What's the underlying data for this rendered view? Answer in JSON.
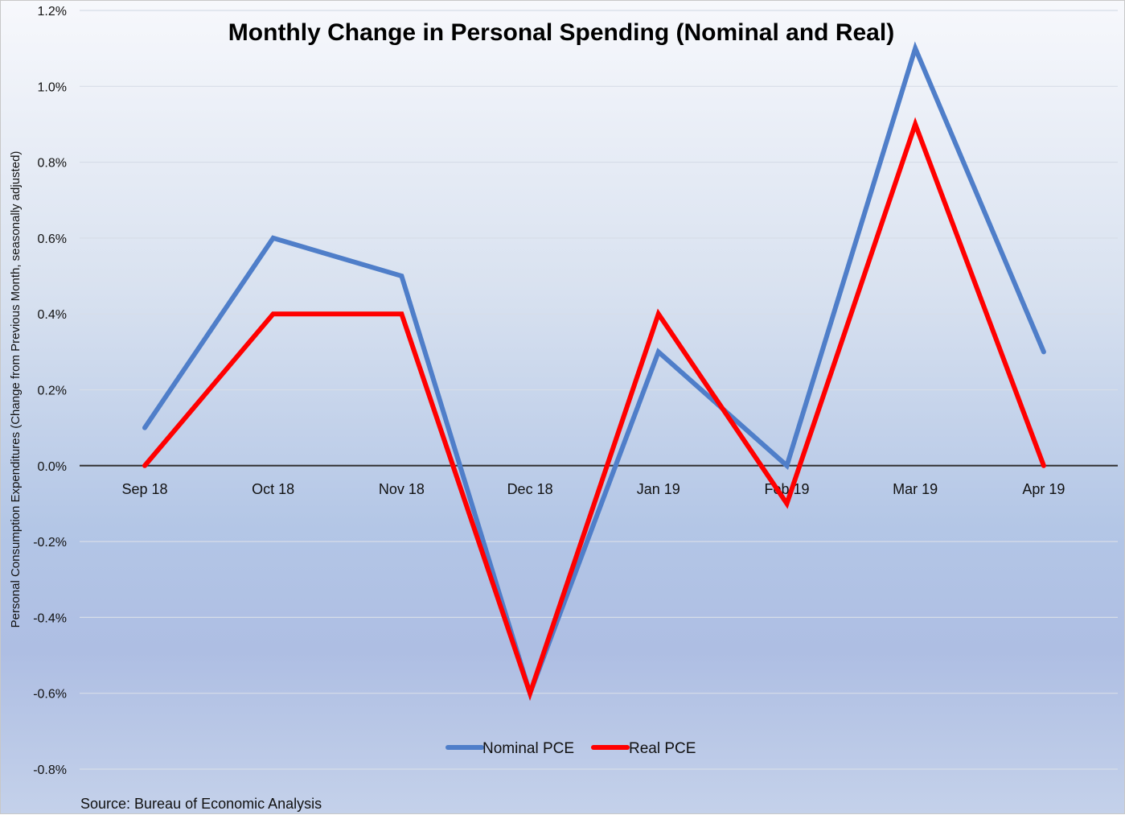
{
  "chart_data": {
    "type": "line",
    "title": "Monthly Change in Personal Spending (Nominal and Real)",
    "xlabel": "",
    "ylabel": "Personal Consumption Expenditures (Change from Previous Month, seasonally adjusted)",
    "categories": [
      "Sep 18",
      "Oct 18",
      "Nov 18",
      "Dec 18",
      "Jan 19",
      "Feb 19",
      "Mar 19",
      "Apr 19"
    ],
    "series": [
      {
        "name": "Nominal PCE",
        "color": "#4f7ec9",
        "values": [
          0.1,
          0.6,
          0.5,
          -0.6,
          0.3,
          0.0,
          1.1,
          0.3
        ]
      },
      {
        "name": "Real PCE",
        "color": "#ff0000",
        "values": [
          0.0,
          0.4,
          0.4,
          -0.6,
          0.4,
          -0.1,
          0.9,
          0.0
        ]
      }
    ],
    "ylim": [
      -0.8,
      1.2
    ],
    "yticks": [
      1.2,
      1.0,
      0.8,
      0.6,
      0.4,
      0.2,
      0.0,
      -0.2,
      -0.4,
      -0.6,
      -0.8
    ],
    "ytick_labels": [
      "1.2%",
      "1.0%",
      "0.8%",
      "0.6%",
      "0.4%",
      "0.2%",
      "0.0%",
      "-0.2%",
      "-0.4%",
      "-0.6%",
      "-0.8%"
    ],
    "grid": true,
    "legend_position": "bottom-center"
  },
  "source": "Source: Bureau of Economic Analysis"
}
